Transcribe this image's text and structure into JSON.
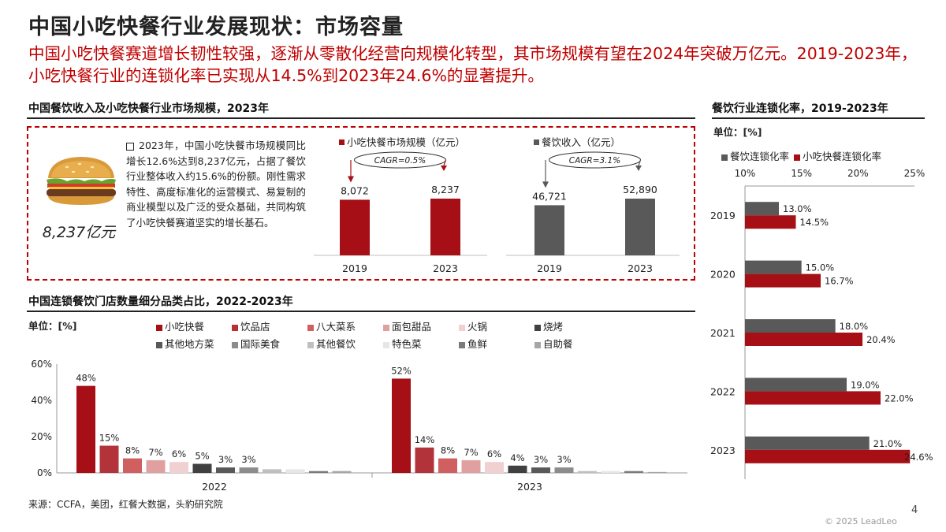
{
  "page": {
    "title": "中国小吃快餐行业发展现状：市场容量",
    "subtitle": "中国小吃快餐赛道增长韧性较强，逐渐从零散化经营向规模化转型，其市场规模有望在2024年突破万亿元。2019-2023年，小吃快餐行业的连锁化率已实现从14.5%到2023年24.6%的显著提升。",
    "source": "来源：CCFA，美团，红餐大数据，头豹研究院",
    "page_number": "4",
    "copyright": "© 2025 LeadLeo"
  },
  "section_market": {
    "title": "中国餐饮收入及小吃快餐行业市场规模，2023年",
    "big_value": "8,237亿元",
    "burger_icon": "burger-icon",
    "description": "2023年，中国小吃快餐市场规模同比增长12.6%达到8,237亿元，占据了餐饮行业整体收入约15.6%的份额。刚性需求特性、高度标准化的运营模式、易复制的商业模型以及广泛的受众基础，共同构筑了小吃快餐赛道坚实的增长基石。"
  },
  "section_chain_store": {
    "title": "中国连锁餐饮门店数量细分品类占比，2022-2023年",
    "unit": "单位：[%]"
  },
  "section_chain_rate": {
    "title": "餐饮行业连锁化率，2019-2023年",
    "unit": "单位：[%]"
  },
  "colors": {
    "red": "#a50f15",
    "gray": "#595959",
    "accent": "#c00000"
  },
  "chart_data": [
    {
      "type": "bar",
      "categories": [
        "2019",
        "2023"
      ],
      "series": [
        {
          "name": "小吃快餐市场规模（亿元）",
          "values": [
            8072,
            8237
          ],
          "labels": [
            "8,072",
            "8,237"
          ]
        }
      ],
      "annotations": [
        "CAGR=0.5%"
      ],
      "ylim": [
        0,
        9000
      ],
      "grid": false
    },
    {
      "type": "bar",
      "categories": [
        "2019",
        "2023"
      ],
      "series": [
        {
          "name": "餐饮收入（亿元）",
          "values": [
            46721,
            52890
          ],
          "labels": [
            "46,721",
            "52,890"
          ]
        }
      ],
      "annotations": [
        "CAGR=3.1%"
      ],
      "ylim": [
        0,
        60000
      ],
      "grid": false
    },
    {
      "type": "bar",
      "categories": [
        "2022",
        "2023"
      ],
      "series": [
        {
          "name": "小吃快餐",
          "color": "#a50f15",
          "values": [
            48,
            52
          ],
          "labels": [
            "48%",
            "52%"
          ]
        },
        {
          "name": "饮品店",
          "color": "#b2343a",
          "values": [
            15,
            14
          ],
          "labels": [
            "15%",
            "14%"
          ]
        },
        {
          "name": "八大菜系",
          "color": "#d06060",
          "values": [
            8,
            8
          ],
          "labels": [
            "8%",
            "8%"
          ]
        },
        {
          "name": "面包甜品",
          "color": "#e0a0a0",
          "values": [
            7,
            7
          ],
          "labels": [
            "7%",
            "7%"
          ]
        },
        {
          "name": "火锅",
          "color": "#f1d0d2",
          "values": [
            6,
            6
          ],
          "labels": [
            "6%",
            "6%"
          ]
        },
        {
          "name": "烧烤",
          "color": "#404040",
          "values": [
            5,
            4
          ],
          "labels": [
            "5%",
            "4%"
          ]
        },
        {
          "name": "其他地方菜",
          "color": "#595959",
          "values": [
            3,
            3
          ],
          "labels": [
            "3%",
            "3%"
          ]
        },
        {
          "name": "国际美食",
          "color": "#8c8c8c",
          "values": [
            3,
            3
          ],
          "labels": [
            "3%",
            "3%"
          ]
        },
        {
          "name": "其他餐饮",
          "color": "#bfbfbf",
          "values": [
            2,
            1
          ],
          "labels": [
            "",
            ""
          ]
        },
        {
          "name": "特色菜",
          "color": "#e6e6e6",
          "values": [
            2,
            1
          ],
          "labels": [
            "",
            ""
          ]
        },
        {
          "name": "鱼鲜",
          "color": "#7a7a7a",
          "values": [
            1,
            1
          ],
          "labels": [
            "",
            ""
          ]
        },
        {
          "name": "自助餐",
          "color": "#a6a6a6",
          "values": [
            1,
            0.5
          ],
          "labels": [
            "",
            ""
          ]
        }
      ],
      "ylim": [
        0,
        60
      ],
      "yticks": [
        "0%",
        "20%",
        "40%",
        "60%"
      ],
      "legend": "top"
    },
    {
      "type": "bar",
      "orientation": "horizontal",
      "categories": [
        "2019",
        "2020",
        "2021",
        "2022",
        "2023"
      ],
      "series": [
        {
          "name": "餐饮连锁化率",
          "color": "#595959",
          "values": [
            13.0,
            15.0,
            18.0,
            19.0,
            21.0
          ],
          "labels": [
            "13.0%",
            "15.0%",
            "18.0%",
            "19.0%",
            "21.0%"
          ]
        },
        {
          "name": "小吃快餐连锁化率",
          "color": "#a50f15",
          "values": [
            14.5,
            16.7,
            20.4,
            22.0,
            24.6
          ],
          "labels": [
            "14.5%",
            "16.7%",
            "20.4%",
            "22.0%",
            "24.6%"
          ]
        }
      ],
      "xlim": [
        10,
        25
      ],
      "xticks": [
        "10%",
        "15%",
        "20%",
        "25%"
      ],
      "legend": "top"
    }
  ]
}
